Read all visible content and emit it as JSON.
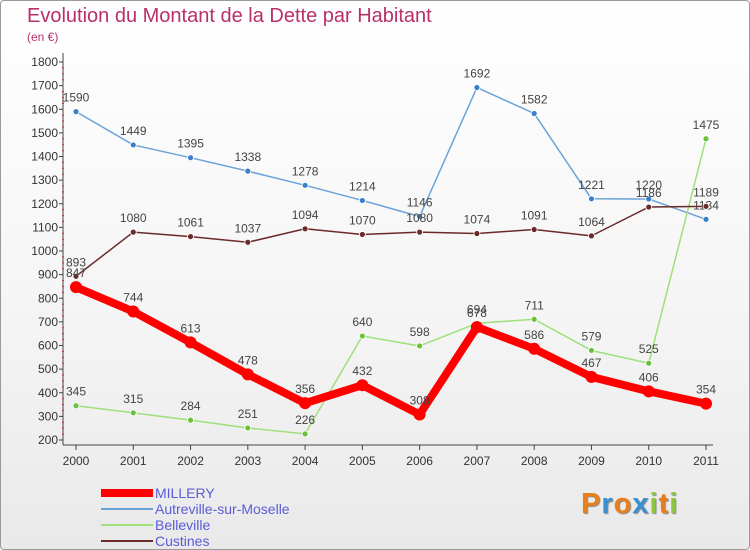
{
  "header": {
    "title": "Evolution du Montant de la Dette par Habitant",
    "subtitle": "(en €)"
  },
  "brand": {
    "letters": [
      "P",
      "r",
      "o",
      "x",
      "i",
      "t",
      "i"
    ],
    "colors": [
      "#e87e1c",
      "#3a8fd0",
      "#e87e1c",
      "#3a8fd0",
      "#8dc63f",
      "#e87e1c",
      "#8dc63f"
    ]
  },
  "chart_data": {
    "type": "line",
    "title": "Evolution du Montant de la Dette par Habitant",
    "subtitle": "(en €)",
    "x": [
      "2000",
      "2001",
      "2002",
      "2003",
      "2004",
      "2005",
      "2006",
      "2007",
      "2008",
      "2009",
      "2010",
      "2011"
    ],
    "ylim": [
      200,
      1800
    ],
    "yticks": [
      200,
      300,
      400,
      500,
      600,
      700,
      800,
      900,
      1000,
      1100,
      1200,
      1300,
      1400,
      1500,
      1600,
      1700,
      1800
    ],
    "grid": false,
    "legend_position": "bottom-left",
    "series": [
      {
        "name": "Autreville-sur-Moselle",
        "color": "#6aa3d8",
        "marker": "#3a80c8",
        "values": [
          1590,
          1449,
          1395,
          1338,
          1278,
          1214,
          1146,
          1692,
          1582,
          1221,
          1220,
          1134
        ]
      },
      {
        "name": "Belleville",
        "color": "#9ee07a",
        "marker": "#6cc03c",
        "values": [
          345,
          315,
          284,
          251,
          226,
          640,
          598,
          694,
          711,
          579,
          525,
          1475
        ]
      },
      {
        "name": "Custines",
        "color": "#6b2a2a",
        "marker": "#6b2a2a",
        "values": [
          893,
          1080,
          1061,
          1037,
          1094,
          1070,
          1080,
          1074,
          1091,
          1064,
          1186,
          1189
        ]
      },
      {
        "name": "MILLERY",
        "color": "#ff0000",
        "marker": "#ff0000",
        "values": [
          847,
          744,
          613,
          478,
          356,
          432,
          308,
          678,
          586,
          467,
          406,
          354
        ]
      }
    ]
  }
}
